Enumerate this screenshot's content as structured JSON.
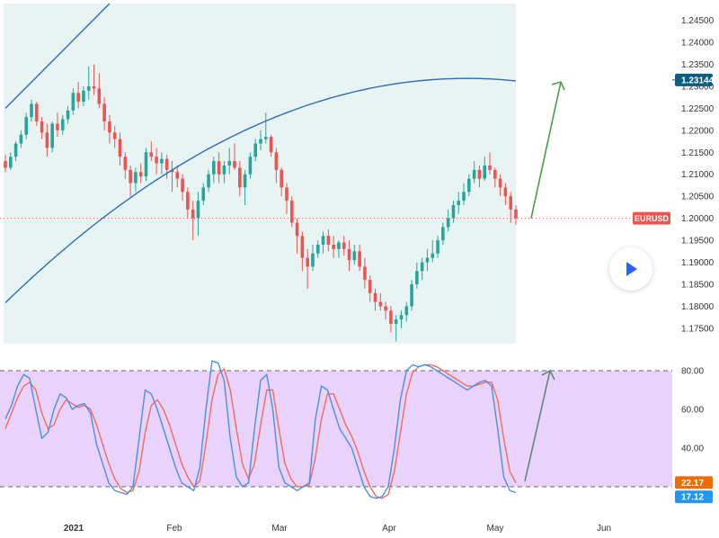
{
  "symbol_badge": "EURUSD",
  "colors": {
    "up": "#26a69a",
    "down": "#ef5350",
    "ma": "#2a6db5",
    "band_fill": "#e8f4f4",
    "stoch_fill": "#e9d2fb",
    "stoch_k": "#4a90e2",
    "stoch_d": "#f06c5c",
    "arrow": "#43a047",
    "price_tag": "#0b5e80"
  },
  "chart_data": [
    {
      "type": "candlestick",
      "panel": "price",
      "title": "",
      "y_ticks": [
        "1.17500",
        "1.18000",
        "1.18500",
        "1.19000",
        "1.19500",
        "1.20000",
        "1.20500",
        "1.21000",
        "1.21500",
        "1.22000",
        "1.22500",
        "1.23000",
        "1.23500",
        "1.24000",
        "1.24500"
      ],
      "ylim": [
        1.1715,
        1.2488
      ],
      "x_ticks": [
        "2021",
        "Feb",
        "Mar",
        "Apr",
        "May",
        "Jun"
      ],
      "current_price_label": "1.20000",
      "ma_value_label": "1.23144",
      "upper_band_text": "",
      "candles_ohlc": [
        [
          1.213,
          1.2145,
          1.2105,
          1.2115
        ],
        [
          1.2115,
          1.215,
          1.211,
          1.214
        ],
        [
          1.214,
          1.2175,
          1.213,
          1.217
        ],
        [
          1.217,
          1.22,
          1.216,
          1.219
        ],
        [
          1.219,
          1.224,
          1.218,
          1.223
        ],
        [
          1.223,
          1.227,
          1.222,
          1.226
        ],
        [
          1.226,
          1.2265,
          1.221,
          1.222
        ],
        [
          1.222,
          1.223,
          1.218,
          1.2195
        ],
        [
          1.2195,
          1.2215,
          1.214,
          1.216
        ],
        [
          1.216,
          1.222,
          1.215,
          1.2215
        ],
        [
          1.2215,
          1.224,
          1.2185,
          1.22
        ],
        [
          1.22,
          1.2235,
          1.219,
          1.2225
        ],
        [
          1.2225,
          1.2255,
          1.2215,
          1.2245
        ],
        [
          1.2245,
          1.2295,
          1.2235,
          1.2285
        ],
        [
          1.2285,
          1.231,
          1.225,
          1.2265
        ],
        [
          1.2265,
          1.23,
          1.2255,
          1.229
        ],
        [
          1.229,
          1.2345,
          1.227,
          1.23
        ],
        [
          1.23,
          1.235,
          1.228,
          1.2295
        ],
        [
          1.2295,
          1.233,
          1.225,
          1.226
        ],
        [
          1.226,
          1.2275,
          1.22,
          1.222
        ],
        [
          1.222,
          1.2235,
          1.217,
          1.2195
        ],
        [
          1.2195,
          1.221,
          1.216,
          1.218
        ],
        [
          1.218,
          1.2195,
          1.212,
          1.214
        ],
        [
          1.214,
          1.215,
          1.209,
          1.211
        ],
        [
          1.211,
          1.212,
          1.205,
          1.208
        ],
        [
          1.208,
          1.2115,
          1.206,
          1.2105
        ],
        [
          1.2105,
          1.2125,
          1.208,
          1.2095
        ],
        [
          1.2095,
          1.216,
          1.2085,
          1.215
        ],
        [
          1.215,
          1.2175,
          1.213,
          1.214
        ],
        [
          1.214,
          1.216,
          1.21,
          1.2125
        ],
        [
          1.2125,
          1.215,
          1.21,
          1.2135
        ],
        [
          1.2135,
          1.2145,
          1.209,
          1.211
        ],
        [
          1.211,
          1.213,
          1.206,
          1.2105
        ],
        [
          1.2105,
          1.212,
          1.207,
          1.209
        ],
        [
          1.209,
          1.21,
          1.204,
          1.206
        ],
        [
          1.206,
          1.207,
          1.2,
          1.202
        ],
        [
          1.202,
          1.204,
          1.195,
          1.2
        ],
        [
          1.2,
          1.206,
          1.196,
          1.204
        ],
        [
          1.204,
          1.208,
          1.203,
          1.207
        ],
        [
          1.207,
          1.211,
          1.206,
          1.21
        ],
        [
          1.21,
          1.214,
          1.208,
          1.213
        ],
        [
          1.213,
          1.215,
          1.208,
          1.21
        ],
        [
          1.21,
          1.213,
          1.208,
          1.212
        ],
        [
          1.212,
          1.216,
          1.21,
          1.213
        ],
        [
          1.213,
          1.217,
          1.211,
          1.2115
        ],
        [
          1.2115,
          1.213,
          1.205,
          1.207
        ],
        [
          1.207,
          1.211,
          1.203,
          1.21
        ],
        [
          1.21,
          1.215,
          1.209,
          1.214
        ],
        [
          1.214,
          1.218,
          1.213,
          1.217
        ],
        [
          1.217,
          1.22,
          1.2155,
          1.218
        ],
        [
          1.218,
          1.224,
          1.217,
          1.2185
        ],
        [
          1.2185,
          1.219,
          1.214,
          1.215
        ],
        [
          1.215,
          1.216,
          1.208,
          1.211
        ],
        [
          1.211,
          1.2115,
          1.205,
          1.207
        ],
        [
          1.207,
          1.208,
          1.201,
          1.204
        ],
        [
          1.204,
          1.205,
          1.198,
          1.199
        ],
        [
          1.199,
          1.2,
          1.192,
          1.196
        ],
        [
          1.196,
          1.197,
          1.188,
          1.191
        ],
        [
          1.191,
          1.193,
          1.184,
          1.189
        ],
        [
          1.189,
          1.194,
          1.188,
          1.192
        ],
        [
          1.192,
          1.195,
          1.191,
          1.194
        ],
        [
          1.194,
          1.197,
          1.192,
          1.196
        ],
        [
          1.196,
          1.1975,
          1.1925,
          1.194
        ],
        [
          1.194,
          1.196,
          1.191,
          1.193
        ],
        [
          1.193,
          1.195,
          1.191,
          1.1945
        ],
        [
          1.1945,
          1.196,
          1.1915,
          1.193
        ],
        [
          1.193,
          1.195,
          1.188,
          1.1905
        ],
        [
          1.1905,
          1.194,
          1.1895,
          1.1925
        ],
        [
          1.1925,
          1.194,
          1.188,
          1.189
        ],
        [
          1.189,
          1.191,
          1.184,
          1.186
        ],
        [
          1.186,
          1.187,
          1.181,
          1.183
        ],
        [
          1.183,
          1.184,
          1.179,
          1.181
        ],
        [
          1.181,
          1.183,
          1.179,
          1.18
        ],
        [
          1.18,
          1.181,
          1.177,
          1.179
        ],
        [
          1.179,
          1.18,
          1.174,
          1.176
        ],
        [
          1.176,
          1.178,
          1.172,
          1.177
        ],
        [
          1.177,
          1.179,
          1.175,
          1.178
        ],
        [
          1.178,
          1.181,
          1.1765,
          1.18
        ],
        [
          1.18,
          1.186,
          1.179,
          1.185
        ],
        [
          1.185,
          1.19,
          1.184,
          1.188
        ],
        [
          1.188,
          1.191,
          1.186,
          1.19
        ],
        [
          1.19,
          1.193,
          1.188,
          1.191
        ],
        [
          1.191,
          1.195,
          1.19,
          1.192
        ],
        [
          1.192,
          1.196,
          1.191,
          1.195
        ],
        [
          1.195,
          1.199,
          1.194,
          1.198
        ],
        [
          1.198,
          1.202,
          1.197,
          1.2
        ],
        [
          1.2,
          1.204,
          1.199,
          1.203
        ],
        [
          1.203,
          1.206,
          1.201,
          1.204
        ],
        [
          1.204,
          1.208,
          1.203,
          1.206
        ],
        [
          1.206,
          1.21,
          1.205,
          1.209
        ],
        [
          1.209,
          1.213,
          1.208,
          1.211
        ],
        [
          1.211,
          1.212,
          1.207,
          1.209
        ],
        [
          1.209,
          1.214,
          1.2085,
          1.212
        ],
        [
          1.212,
          1.215,
          1.21,
          1.211
        ],
        [
          1.211,
          1.2115,
          1.207,
          1.209
        ],
        [
          1.209,
          1.21,
          1.205,
          1.207
        ],
        [
          1.207,
          1.208,
          1.203,
          1.205
        ],
        [
          1.205,
          1.206,
          1.199,
          1.202
        ],
        [
          1.202,
          1.203,
          1.1985,
          1.2
        ]
      ],
      "ma_line": {
        "name": "",
        "values": [
          [
            0,
            1.1808
          ],
          [
            49,
            1.2216
          ],
          [
            99,
            1.2311
          ]
        ]
      },
      "upper_band": {
        "name": "",
        "values": [
          [
            0,
            1.225
          ],
          [
            20,
            1.2488
          ]
        ]
      }
    },
    {
      "type": "line",
      "panel": "stochastic",
      "title": "",
      "y_ticks": [
        "40.00",
        "60.00",
        "80.00"
      ],
      "ylim": [
        12,
        90
      ],
      "levels": [
        80,
        20
      ],
      "k_label": "17.12",
      "d_label": "22.17",
      "series": [
        {
          "name": "",
          "key": "k",
          "values": [
            55,
            62,
            72,
            78,
            76,
            60,
            45,
            48,
            60,
            68,
            66,
            60,
            62,
            63,
            58,
            42,
            32,
            22,
            18,
            17,
            16,
            20,
            45,
            70,
            68,
            60,
            50,
            40,
            30,
            22,
            20,
            18,
            30,
            60,
            85,
            84,
            75,
            45,
            25,
            20,
            22,
            50,
            75,
            78,
            60,
            30,
            22,
            20,
            18,
            20,
            22,
            55,
            72,
            70,
            60,
            50,
            45,
            40,
            30,
            20,
            15,
            14,
            15,
            20,
            40,
            65,
            80,
            83,
            82,
            83,
            82,
            80,
            78,
            76,
            74,
            72,
            70,
            72,
            74,
            75,
            72,
            50,
            25,
            18,
            17
          ]
        },
        {
          "name": "",
          "key": "d",
          "values": [
            50,
            58,
            66,
            72,
            74,
            70,
            58,
            50,
            52,
            60,
            65,
            63,
            61,
            62,
            60,
            52,
            42,
            32,
            24,
            19,
            17,
            18,
            28,
            48,
            62,
            65,
            60,
            52,
            42,
            32,
            25,
            20,
            23,
            42,
            65,
            78,
            81,
            70,
            50,
            32,
            24,
            32,
            52,
            70,
            70,
            50,
            32,
            24,
            20,
            20,
            21,
            35,
            55,
            68,
            68,
            60,
            52,
            46,
            38,
            28,
            20,
            15,
            14,
            16,
            28,
            48,
            68,
            79,
            82,
            83,
            83,
            82,
            80,
            78,
            76,
            74,
            72,
            72,
            73,
            74,
            74,
            65,
            45,
            28,
            22
          ]
        }
      ],
      "ylabel": "",
      "xlabel": ""
    }
  ]
}
